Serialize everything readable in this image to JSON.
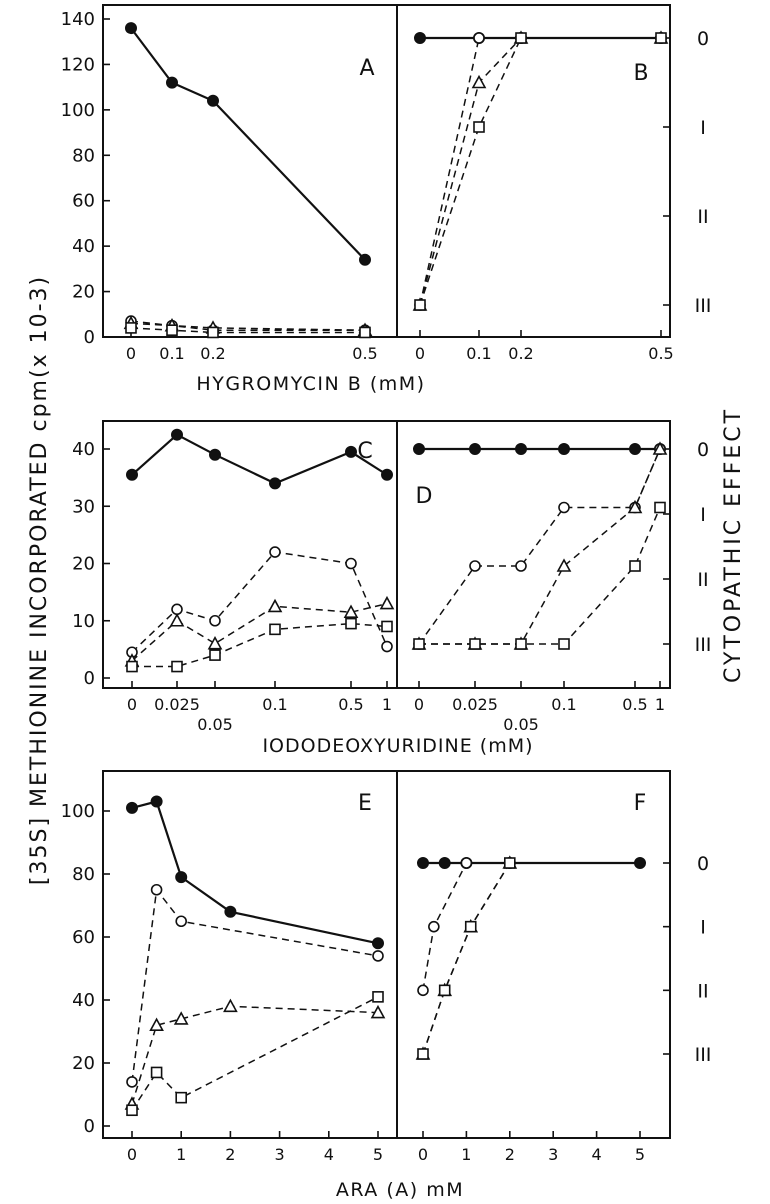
{
  "figure": {
    "y_axis_label": "[35S] METHIONINE INCORPORATED cpm(x 10-3)",
    "right_axis_label": "CYTOPATHIC EFFECT",
    "cpe_levels": [
      "0",
      "I",
      "II",
      "III"
    ]
  },
  "chart_data": [
    {
      "panel": "A",
      "type": "line",
      "xlabel": "HYGROMYCIN B (mM)",
      "ylabel": "cpm(x 10-3)",
      "xlim": [
        0,
        0.5
      ],
      "ylim": [
        0,
        140
      ],
      "xticks": [
        "0",
        "0.1",
        "0.2",
        "0.5"
      ],
      "yticks": [
        "0",
        "20",
        "40",
        "60",
        "80",
        "100",
        "120",
        "140"
      ],
      "series": [
        {
          "marker": "filled-circle",
          "style": "solid",
          "x": [
            0,
            0.1,
            0.2,
            0.5
          ],
          "y": [
            136,
            112,
            104,
            34
          ]
        },
        {
          "marker": "open-circle",
          "style": "dashed",
          "x": [
            0,
            0.1,
            0.2,
            0.5
          ],
          "y": [
            7,
            5,
            3,
            3
          ]
        },
        {
          "marker": "open-triangle",
          "style": "dashed",
          "x": [
            0,
            0.1,
            0.2,
            0.5
          ],
          "y": [
            6,
            5,
            4,
            3
          ]
        },
        {
          "marker": "open-square",
          "style": "dashed",
          "x": [
            0,
            0.1,
            0.2,
            0.5
          ],
          "y": [
            4,
            3,
            2,
            2
          ]
        }
      ]
    },
    {
      "panel": "B",
      "type": "line",
      "xlabel": "HYGROMYCIN B (mM)",
      "ylabel": "CYTOPATHIC EFFECT",
      "xlim": [
        0,
        0.5
      ],
      "ylim": [
        0,
        3
      ],
      "xticks": [
        "0",
        "0.1",
        "0.2",
        "0.5"
      ],
      "yticks": [
        "0",
        "I",
        "II",
        "III"
      ],
      "series": [
        {
          "marker": "filled-circle",
          "style": "solid",
          "x": [
            0,
            0.1,
            0.2,
            0.5
          ],
          "y": [
            0,
            0,
            0,
            0
          ]
        },
        {
          "marker": "open-circle",
          "style": "dashed",
          "x": [
            0,
            0.1,
            0.2,
            0.5
          ],
          "y": [
            3,
            0,
            0,
            0
          ]
        },
        {
          "marker": "open-triangle",
          "style": "dashed",
          "x": [
            0,
            0.1,
            0.2,
            0.5
          ],
          "y": [
            3,
            0.5,
            0,
            0
          ]
        },
        {
          "marker": "open-square",
          "style": "dashed",
          "x": [
            0,
            0.1,
            0.2,
            0.5
          ],
          "y": [
            3,
            1,
            0,
            0
          ]
        }
      ]
    },
    {
      "panel": "C",
      "type": "line",
      "xlabel": "IODODEOXYURIDINE (mM)",
      "ylabel": "cpm(x 10-3)",
      "xlim": [
        0,
        1
      ],
      "ylim": [
        0,
        48
      ],
      "xticks": [
        "0",
        "0.025",
        "0.05",
        "0.1",
        "0.5",
        "1"
      ],
      "yticks": [
        "0",
        "10",
        "20",
        "30",
        "40"
      ],
      "series": [
        {
          "marker": "filled-circle",
          "style": "solid",
          "x": [
            "0",
            "0.025",
            "0.05",
            "0.1",
            "0.5",
            "1"
          ],
          "y": [
            35.5,
            42.5,
            39,
            34,
            39.5,
            35.5
          ]
        },
        {
          "marker": "open-circle",
          "style": "dashed",
          "x": [
            "0",
            "0.025",
            "0.05",
            "0.1",
            "0.5",
            "1"
          ],
          "y": [
            4.5,
            12,
            10,
            22,
            20,
            5.5
          ]
        },
        {
          "marker": "open-triangle",
          "style": "dashed",
          "x": [
            "0",
            "0.025",
            "0.05",
            "0.1",
            "0.5",
            "1"
          ],
          "y": [
            3,
            10,
            6,
            12.5,
            11.5,
            13
          ]
        },
        {
          "marker": "open-square",
          "style": "dashed",
          "x": [
            "0",
            "0.025",
            "0.05",
            "0.1",
            "0.5",
            "1"
          ],
          "y": [
            2,
            2,
            4,
            8.5,
            9.5,
            9
          ]
        }
      ]
    },
    {
      "panel": "D",
      "type": "line",
      "xlabel": "IODODEOXYURIDINE (mM)",
      "ylabel": "CYTOPATHIC EFFECT",
      "xlim": [
        0,
        1
      ],
      "ylim": [
        0,
        3
      ],
      "xticks": [
        "0",
        "0.025",
        "0.05",
        "0.1",
        "0.5",
        "1"
      ],
      "yticks": [
        "0",
        "I",
        "II",
        "III"
      ],
      "series": [
        {
          "marker": "filled-circle",
          "style": "solid",
          "x": [
            "0",
            "0.025",
            "0.05",
            "0.1",
            "0.5",
            "1"
          ],
          "y": [
            0,
            0,
            0,
            0,
            0,
            0
          ]
        },
        {
          "marker": "open-circle",
          "style": "dashed",
          "x": [
            "0",
            "0.025",
            "0.05",
            "0.1",
            "0.5",
            "1"
          ],
          "y": [
            3,
            1.8,
            1.8,
            0.9,
            0.9,
            0
          ]
        },
        {
          "marker": "open-triangle",
          "style": "dashed",
          "x": [
            "0",
            "0.025",
            "0.05",
            "0.1",
            "0.5",
            "1"
          ],
          "y": [
            3,
            3,
            3,
            1.8,
            0.9,
            0
          ]
        },
        {
          "marker": "open-square",
          "style": "dashed",
          "x": [
            "0",
            "0.025",
            "0.05",
            "0.1",
            "0.5",
            "1"
          ],
          "y": [
            3,
            3,
            3,
            3,
            1.8,
            0.9
          ]
        }
      ]
    },
    {
      "panel": "E",
      "type": "line",
      "xlabel": "ARA (A) mM",
      "ylabel": "cpm(x 10-3)",
      "xlim": [
        0,
        5
      ],
      "ylim": [
        0,
        110
      ],
      "xticks": [
        "0",
        "1",
        "2",
        "3",
        "4",
        "5"
      ],
      "yticks": [
        "0",
        "20",
        "40",
        "60",
        "80",
        "100"
      ],
      "series": [
        {
          "marker": "filled-circle",
          "style": "solid",
          "x": [
            0,
            0.5,
            1,
            2,
            5
          ],
          "y": [
            101,
            103,
            79,
            68,
            58
          ]
        },
        {
          "marker": "open-circle",
          "style": "dashed",
          "x": [
            0,
            0.5,
            1,
            5
          ],
          "y": [
            14,
            75,
            65,
            54
          ]
        },
        {
          "marker": "open-triangle",
          "style": "dashed",
          "x": [
            0,
            0.5,
            1,
            2,
            5
          ],
          "y": [
            7,
            32,
            34,
            38,
            36
          ]
        },
        {
          "marker": "open-square",
          "style": "dashed",
          "x": [
            0,
            0.5,
            1,
            5
          ],
          "y": [
            5,
            17,
            9,
            41
          ]
        }
      ]
    },
    {
      "panel": "F",
      "type": "line",
      "xlabel": "ARA (A) mM",
      "ylabel": "CYTOPATHIC EFFECT",
      "xlim": [
        0,
        5
      ],
      "ylim": [
        0,
        3
      ],
      "xticks": [
        "0",
        "1",
        "2",
        "3",
        "4",
        "5"
      ],
      "yticks": [
        "0",
        "I",
        "II",
        "III"
      ],
      "series": [
        {
          "marker": "filled-circle",
          "style": "solid",
          "x": [
            0,
            0.5,
            1,
            2,
            5
          ],
          "y": [
            0,
            0,
            0,
            0,
            0
          ]
        },
        {
          "marker": "open-circle",
          "style": "dashed",
          "x": [
            0,
            0.25,
            1
          ],
          "y": [
            2,
            1,
            0
          ]
        },
        {
          "marker": "open-triangle",
          "style": "dashed",
          "x": [
            0,
            0.5,
            1.1,
            2
          ],
          "y": [
            3,
            2,
            1,
            0
          ]
        },
        {
          "marker": "open-square",
          "style": "dashed",
          "x": [
            0,
            0.5,
            1.1,
            2
          ],
          "y": [
            3,
            2,
            1,
            0
          ]
        }
      ]
    }
  ]
}
